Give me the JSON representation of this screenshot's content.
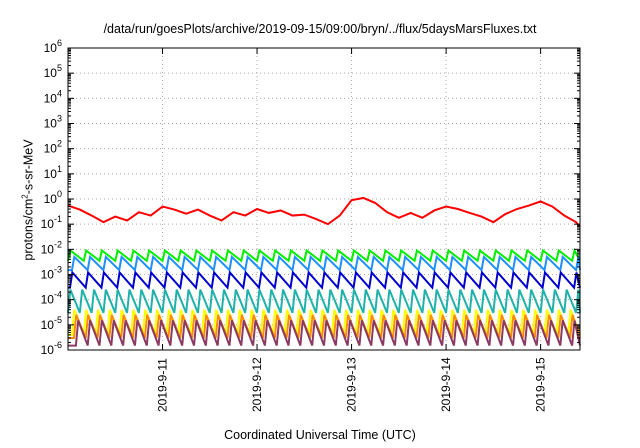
{
  "chart_data": {
    "type": "line",
    "title": "/data/run/goesPlots/archive/2019-09-15/09:00/bryn/../flux/5daysMarsFluxes.txt",
    "xlabel": "Coordinated Universal Time (UTC)",
    "ylabel_prefix": "protons/cm",
    "ylabel_sup": "2",
    "ylabel_suffix": "-s-sr-MeV",
    "y_scale": "log",
    "ylim": [
      1e-06,
      1000000.0
    ],
    "y_ticks": [
      {
        "v": 1e-06,
        "base": "10",
        "exp": "-6"
      },
      {
        "v": 1e-05,
        "base": "10",
        "exp": "-5"
      },
      {
        "v": 0.0001,
        "base": "10",
        "exp": "-4"
      },
      {
        "v": 0.001,
        "base": "10",
        "exp": "-3"
      },
      {
        "v": 0.01,
        "base": "10",
        "exp": "-2"
      },
      {
        "v": 0.1,
        "base": "10",
        "exp": "-1"
      },
      {
        "v": 1,
        "base": "10",
        "exp": "0"
      },
      {
        "v": 10,
        "base": "10",
        "exp": "1"
      },
      {
        "v": 100,
        "base": "10",
        "exp": "2"
      },
      {
        "v": 1000,
        "base": "10",
        "exp": "3"
      },
      {
        "v": 10000,
        "base": "10",
        "exp": "4"
      },
      {
        "v": 100000,
        "base": "10",
        "exp": "5"
      },
      {
        "v": 1000000,
        "base": "10",
        "exp": "6"
      }
    ],
    "x_unit": "days",
    "xlim": [
      "2019-09-10T00:00",
      "2019-09-15T10:00"
    ],
    "x_ticks": [
      {
        "x": "2019-09-11T00:00",
        "label": "2019-9-11"
      },
      {
        "x": "2019-09-12T00:00",
        "label": "2019-9-12"
      },
      {
        "x": "2019-09-13T00:00",
        "label": "2019-9-13"
      },
      {
        "x": "2019-09-14T00:00",
        "label": "2019-9-14"
      },
      {
        "x": "2019-09-15T00:00",
        "label": "2019-9-15"
      }
    ],
    "grid": true,
    "series": [
      {
        "color": "#ff0000",
        "points": [
          [
            "2019-09-10T00:00",
            0.55
          ],
          [
            "2019-09-10T03:00",
            0.38
          ],
          [
            "2019-09-10T06:00",
            0.22
          ],
          [
            "2019-09-10T09:00",
            0.12
          ],
          [
            "2019-09-10T12:00",
            0.2
          ],
          [
            "2019-09-10T15:00",
            0.14
          ],
          [
            "2019-09-10T18:00",
            0.3
          ],
          [
            "2019-09-10T21:00",
            0.22
          ],
          [
            "2019-09-11T00:00",
            0.5
          ],
          [
            "2019-09-11T03:00",
            0.38
          ],
          [
            "2019-09-11T06:00",
            0.26
          ],
          [
            "2019-09-11T09:00",
            0.38
          ],
          [
            "2019-09-11T12:00",
            0.22
          ],
          [
            "2019-09-11T15:00",
            0.14
          ],
          [
            "2019-09-11T18:00",
            0.3
          ],
          [
            "2019-09-11T21:00",
            0.22
          ],
          [
            "2019-09-12T00:00",
            0.4
          ],
          [
            "2019-09-12T03:00",
            0.28
          ],
          [
            "2019-09-12T06:00",
            0.35
          ],
          [
            "2019-09-12T09:00",
            0.22
          ],
          [
            "2019-09-12T12:00",
            0.24
          ],
          [
            "2019-09-12T15:00",
            0.16
          ],
          [
            "2019-09-12T18:00",
            0.1
          ],
          [
            "2019-09-12T21:00",
            0.22
          ],
          [
            "2019-09-13T00:00",
            0.9
          ],
          [
            "2019-09-13T03:00",
            1.1
          ],
          [
            "2019-09-13T06:00",
            0.7
          ],
          [
            "2019-09-13T09:00",
            0.3
          ],
          [
            "2019-09-13T12:00",
            0.18
          ],
          [
            "2019-09-13T15:00",
            0.28
          ],
          [
            "2019-09-13T18:00",
            0.18
          ],
          [
            "2019-09-13T21:00",
            0.35
          ],
          [
            "2019-09-14T00:00",
            0.5
          ],
          [
            "2019-09-14T03:00",
            0.4
          ],
          [
            "2019-09-14T06:00",
            0.28
          ],
          [
            "2019-09-14T09:00",
            0.2
          ],
          [
            "2019-09-14T12:00",
            0.12
          ],
          [
            "2019-09-14T15:00",
            0.25
          ],
          [
            "2019-09-14T18:00",
            0.4
          ],
          [
            "2019-09-14T21:00",
            0.55
          ],
          [
            "2019-09-15T00:00",
            0.8
          ],
          [
            "2019-09-15T03:00",
            0.5
          ],
          [
            "2019-09-15T06:00",
            0.22
          ],
          [
            "2019-09-15T09:00",
            0.12
          ],
          [
            "2019-09-15T10:00",
            0.08
          ]
        ]
      },
      {
        "color": "#00ee00",
        "sawtooth": {
          "peak": 0.009,
          "trough": 0.0035,
          "period_h": 4,
          "phase_h": 0
        }
      },
      {
        "color": "#1e90ff",
        "sawtooth": {
          "peak": 0.005,
          "trough": 0.0015,
          "period_h": 4,
          "phase_h": 1
        }
      },
      {
        "color": "#0000cd",
        "sawtooth": {
          "peak": 0.0012,
          "trough": 0.0003,
          "period_h": 4,
          "phase_h": 0.5
        }
      },
      {
        "color": "#20b2aa",
        "sawtooth": {
          "peak": 0.00025,
          "trough": 3e-05,
          "period_h": 3,
          "phase_h": 0
        }
      },
      {
        "color": "#ffff00",
        "sawtooth": {
          "peak": 4e-05,
          "trough": 4e-06,
          "period_h": 3,
          "phase_h": 1
        }
      },
      {
        "color": "#ff8c00",
        "sawtooth": {
          "peak": 2.5e-05,
          "trough": 3e-06,
          "period_h": 3,
          "phase_h": 1.5
        }
      },
      {
        "color": "#8b3a62",
        "sawtooth": {
          "peak": 1.5e-05,
          "trough": 1.5e-06,
          "period_h": 3,
          "phase_h": 2
        }
      }
    ]
  }
}
